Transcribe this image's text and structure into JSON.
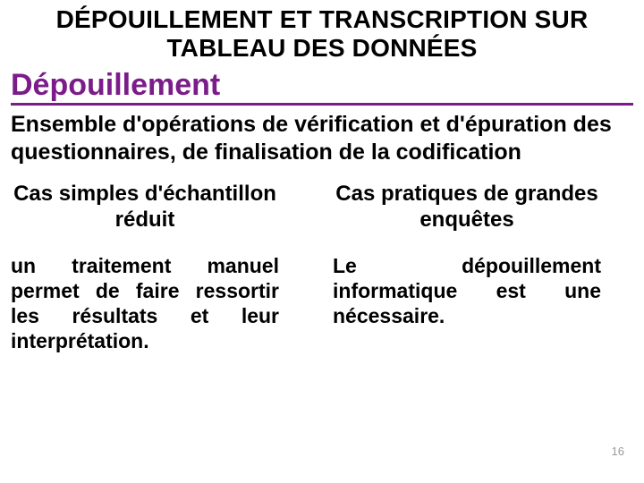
{
  "colors": {
    "accent": "#7b1c8a",
    "text": "#000000",
    "background": "#ffffff",
    "page_num": "#9a9a9a"
  },
  "typography": {
    "title_fontsize": 28,
    "subheading_fontsize": 34,
    "definition_fontsize": 25,
    "col_title_fontsize": 24,
    "col_body_fontsize": 23,
    "font_family": "Arial",
    "font_weight_bold": 700,
    "font_weight_black": 900
  },
  "title": "DÉPOUILLEMENT ET TRANSCRIPTION SUR TABLEAU DES DONNÉES",
  "subheading": "Dépouillement",
  "definition": "Ensemble d'opérations de vérification et d'épuration des questionnaires, de finalisation de la codification",
  "columns": [
    {
      "heading": "Cas simples d'échantillon réduit",
      "body": "un traitement manuel permet de faire ressortir les résultats et leur interprétation."
    },
    {
      "heading": "Cas pratiques de grandes enquêtes",
      "body": "Le dépouillement informatique est une nécessaire."
    }
  ],
  "page_number": "16"
}
